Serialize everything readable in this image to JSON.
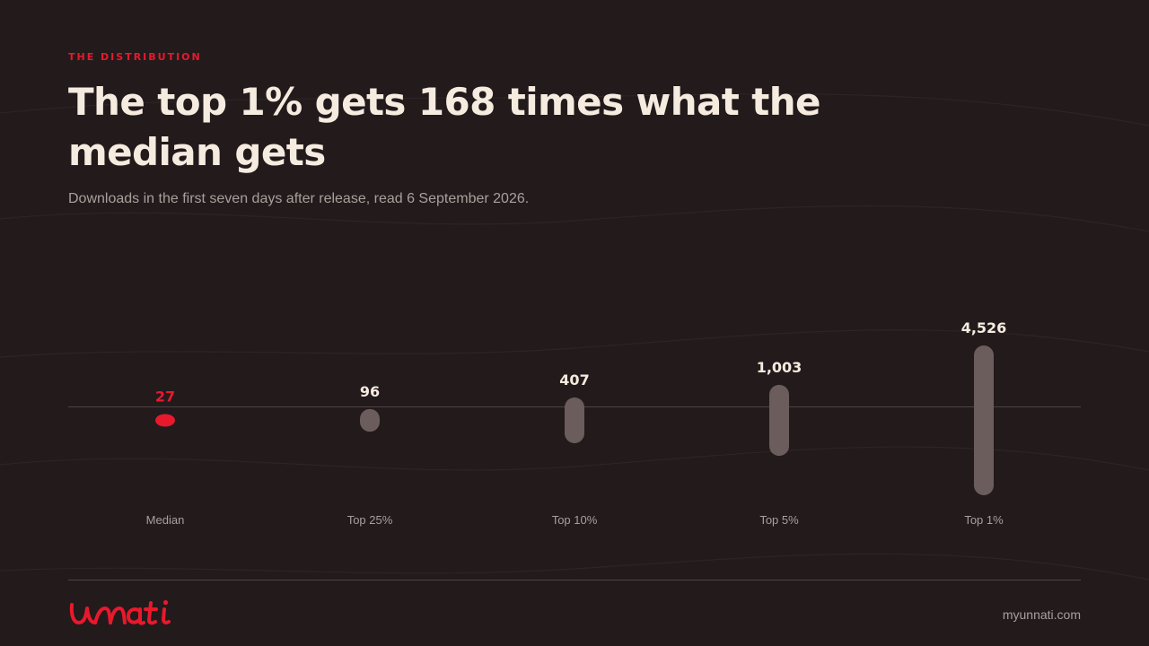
{
  "eyebrow": "THE DISTRIBUTION",
  "title": "The top 1% gets 168 times what the median gets",
  "subtitle": "Downloads in the first seven days after release, read 6 September 2026.",
  "chart_data": {
    "type": "bar",
    "categories": [
      "Median",
      "Top 25%",
      "Top 10%",
      "Top 5%",
      "Top 1%"
    ],
    "values": [
      27,
      96,
      407,
      1003,
      4526
    ],
    "value_labels": [
      "27",
      "96",
      "407",
      "1,003",
      "4,526"
    ],
    "highlight_index": 0,
    "title": "",
    "xlabel": "",
    "ylabel": "",
    "grid": false,
    "legend": "none",
    "colors": {
      "highlight": "#e8192c",
      "bar": "#6b5d5b",
      "label": "#f6ebdf",
      "category": "#a8a09b"
    }
  },
  "footer": {
    "logo_text": "unnati",
    "site": "myunnati.com"
  },
  "colors": {
    "background": "#231a1c",
    "accent": "#e8192c",
    "title": "#f6ebdf",
    "muted": "#a8a09b"
  }
}
